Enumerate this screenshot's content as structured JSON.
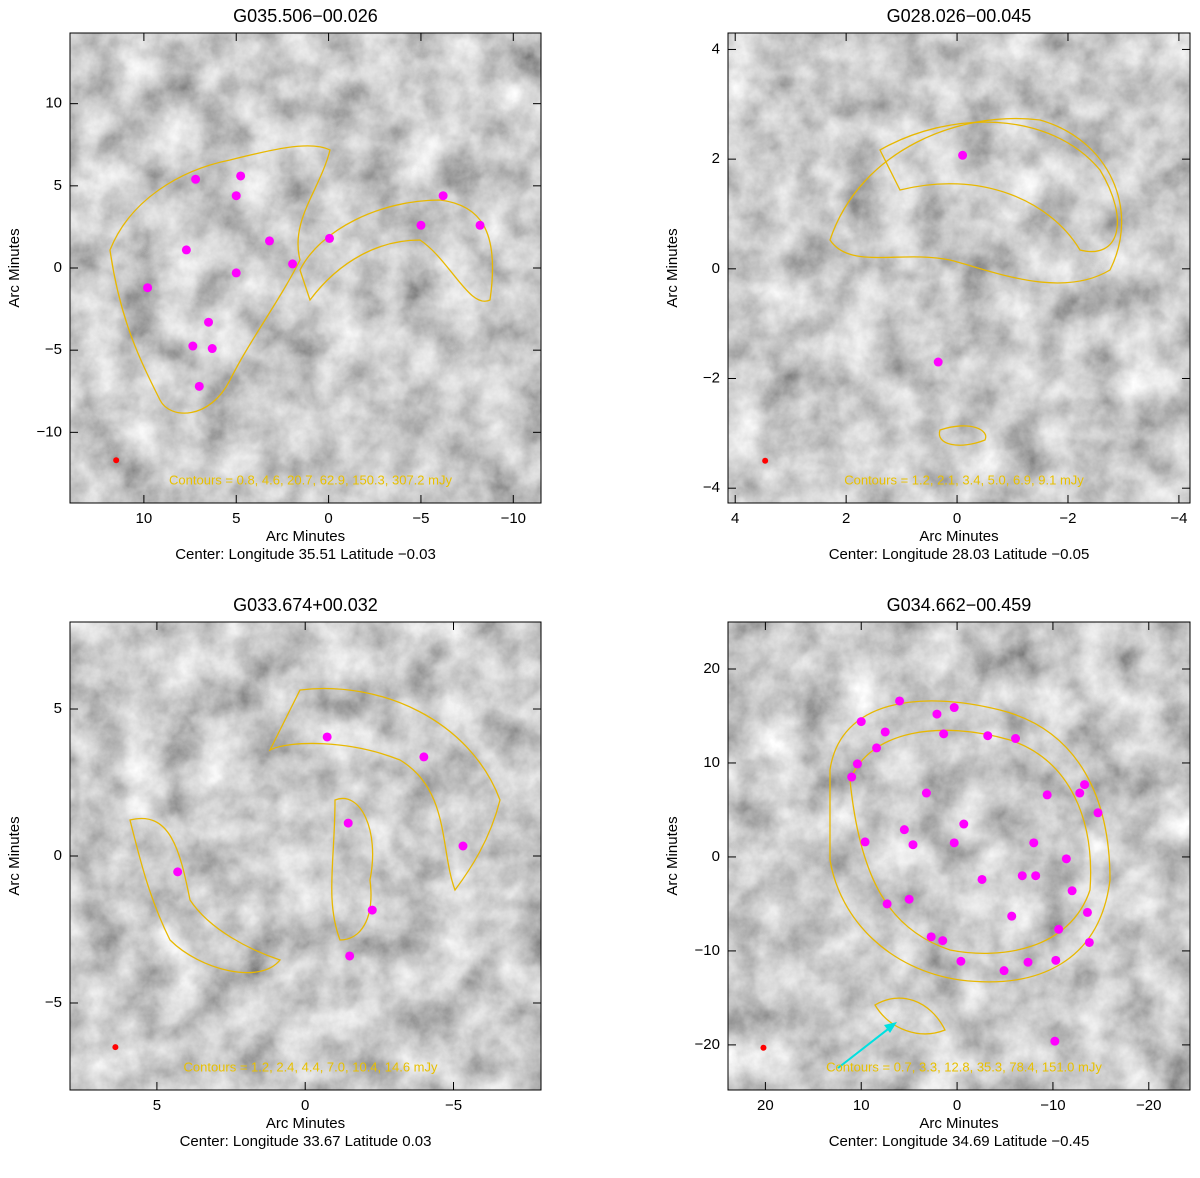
{
  "chart_data": [
    {
      "type": "image",
      "title": "G035.506−00.026",
      "xlabel": "Arc Minutes",
      "ylabel": "Arc Minutes",
      "caption": "Center:  Longitude 35.51 Latitude −0.03",
      "annotation": "Contours = 0.8, 4.6, 20.7, 62.9, 150.3, 307.2 mJy",
      "xlim": [
        14,
        -11.5
      ],
      "ylim": [
        -14.3,
        14.3
      ],
      "xticks": [
        10,
        5,
        0,
        {
          "value": -5,
          "label": "−5"
        },
        {
          "value": -10,
          "label": "−10"
        }
      ],
      "yticks": [
        {
          "value": -10,
          "label": "−10"
        },
        {
          "value": -5,
          "label": "−5"
        },
        0,
        5,
        10
      ],
      "points": {
        "color": "#ff00ff",
        "x": [
          4.76,
          7.2,
          5.0,
          3.2,
          7.7,
          5.0,
          9.8,
          1.95,
          -0.05,
          -5.0,
          -6.2,
          -8.2,
          6.5,
          7.35,
          6.3,
          7.0
        ],
        "y": [
          5.6,
          5.4,
          4.4,
          1.65,
          1.1,
          -0.3,
          -1.2,
          0.25,
          1.8,
          2.6,
          4.4,
          2.6,
          -3.3,
          -4.75,
          -4.9,
          -7.2
        ]
      },
      "beam": {
        "color": "#ff0000",
        "x": 11.5,
        "y": -11.7
      }
    },
    {
      "type": "image",
      "title": "G028.026−00.045",
      "xlabel": "Arc Minutes",
      "ylabel": "Arc Minutes",
      "caption": "Center:  Longitude 28.03 Latitude −0.05",
      "annotation": "Contours = 1.2, 2.1, 3.4, 5.0, 6.9, 9.1 mJy",
      "xlim": [
        4.13,
        -4.2
      ],
      "ylim": [
        -4.27,
        4.3
      ],
      "xticks": [
        4,
        2,
        0,
        {
          "value": -2,
          "label": "−2"
        },
        {
          "value": -4,
          "label": "−4"
        }
      ],
      "yticks": [
        {
          "value": -4,
          "label": "−4"
        },
        {
          "value": -2,
          "label": "−2"
        },
        0,
        2,
        4
      ],
      "points": {
        "color": "#ff00ff",
        "x": [
          -0.1,
          0.34
        ],
        "y": [
          2.07,
          -1.7
        ]
      },
      "beam": {
        "color": "#ff0000",
        "x": 3.46,
        "y": -3.5
      }
    },
    {
      "type": "image",
      "title": "G033.674+00.032",
      "xlabel": "Arc Minutes",
      "ylabel": "Arc Minutes",
      "caption": "Center:  Longitude 33.67 Latitude 0.03",
      "annotation": "Contours = 1.2, 2.4, 4.4, 7.0, 10.4, 14.6 mJy",
      "xlim": [
        7.93,
        -7.95
      ],
      "ylim": [
        -7.96,
        7.96
      ],
      "xticks": [
        5,
        0,
        {
          "value": -5,
          "label": "−5"
        }
      ],
      "yticks": [
        {
          "value": -5,
          "label": "−5"
        },
        0,
        5
      ],
      "points": {
        "color": "#ff00ff",
        "x": [
          -0.74,
          -4.0,
          -1.45,
          -5.32,
          4.3,
          -2.26,
          -1.5
        ],
        "y": [
          4.05,
          3.37,
          1.12,
          0.34,
          -0.54,
          -1.84,
          -3.4
        ]
      },
      "beam": {
        "color": "#ff0000",
        "x": 6.4,
        "y": -6.5
      }
    },
    {
      "type": "image",
      "title": "G034.662−00.459",
      "xlabel": "Arc Minutes",
      "ylabel": "Arc Minutes",
      "caption": "Center:  Longitude 34.69 Latitude −0.45",
      "annotation": "Contours = 0.7, 3.3, 12.8, 35.3, 78.4, 151.0 mJy",
      "xlim": [
        23.9,
        -24.3
      ],
      "ylim": [
        -24.8,
        25
      ],
      "xticks": [
        20,
        10,
        0,
        {
          "value": -10,
          "label": "−10"
        },
        {
          "value": -20,
          "label": "−20"
        }
      ],
      "yticks": [
        {
          "value": -20,
          "label": "−20"
        },
        {
          "value": -10,
          "label": "−10"
        },
        0,
        10,
        20
      ],
      "points": {
        "color": "#ff00ff",
        "x": [
          10.0,
          6.0,
          2.1,
          0.3,
          7.5,
          1.4,
          -3.2,
          -6.1,
          8.4,
          10.4,
          11.0,
          3.2,
          -9.4,
          -13.3,
          -12.8,
          -14.7,
          -0.7,
          5.5,
          9.6,
          4.6,
          0.3,
          -8.0,
          -11.4,
          -2.6,
          -6.8,
          -8.2,
          5.0,
          -12.0,
          7.3,
          -5.7,
          -13.6,
          2.7,
          1.5,
          -10.6,
          -13.8,
          -0.4,
          -4.9,
          -7.4,
          -10.3,
          -10.2
        ],
        "y": [
          14.4,
          16.6,
          15.2,
          15.9,
          13.3,
          13.1,
          12.9,
          12.6,
          11.6,
          9.9,
          8.5,
          6.8,
          6.6,
          7.7,
          6.8,
          4.7,
          3.5,
          2.9,
          1.6,
          1.3,
          1.5,
          1.5,
          -0.2,
          -2.4,
          -2.0,
          -2.0,
          -4.5,
          -3.6,
          -5.0,
          -6.3,
          -5.9,
          -8.5,
          -8.9,
          -7.7,
          -9.1,
          -11.1,
          -12.1,
          -11.2,
          -11.0,
          -19.6
        ]
      },
      "beam": {
        "color": "#ff0000",
        "x": 20.2,
        "y": -20.3
      }
    }
  ]
}
